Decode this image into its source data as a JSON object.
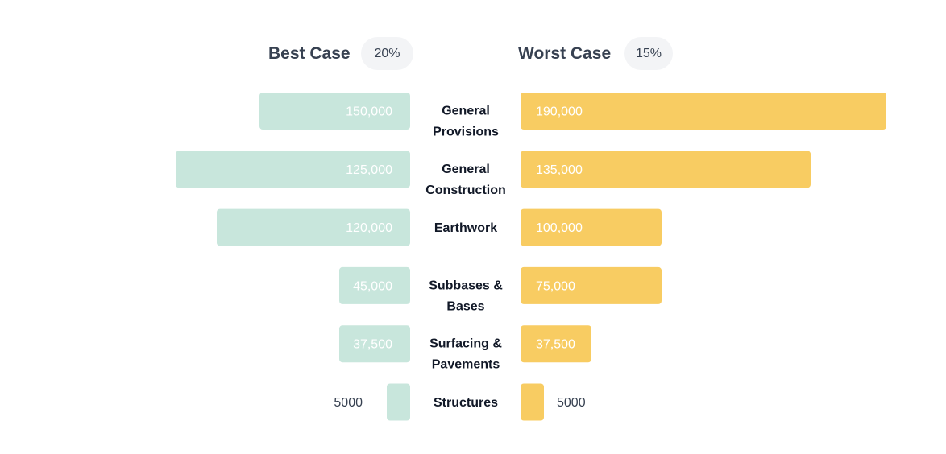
{
  "headers": {
    "best_title": "Best Case",
    "best_pct": "20%",
    "worst_title": "Worst Case",
    "worst_pct": "15%"
  },
  "colors": {
    "best": "#c8e6dc",
    "worst": "#f8cc62"
  },
  "chart_data": {
    "type": "bar",
    "orientation": "horizontal-diverging",
    "categories": [
      [
        "General",
        "Provisions"
      ],
      [
        "General",
        "Construction"
      ],
      [
        "Earthwork"
      ],
      [
        "Subbases &",
        "Bases"
      ],
      [
        "Surfacing &",
        "Pavements"
      ],
      [
        "Structures"
      ]
    ],
    "series": [
      {
        "name": "Best Case",
        "side": "left",
        "values": [
          150000,
          125000,
          120000,
          45000,
          37500,
          5000
        ],
        "labels": [
          "150,000",
          "125,000",
          "120,000",
          "45,000",
          "37,500",
          "5000"
        ]
      },
      {
        "name": "Worst Case",
        "side": "right",
        "values": [
          190000,
          135000,
          100000,
          75000,
          37500,
          5000
        ],
        "labels": [
          "190,000",
          "135,000",
          "100,000",
          "75,000",
          "37,500",
          "5000"
        ]
      }
    ],
    "title": "",
    "xlabel": "",
    "ylabel": ""
  }
}
